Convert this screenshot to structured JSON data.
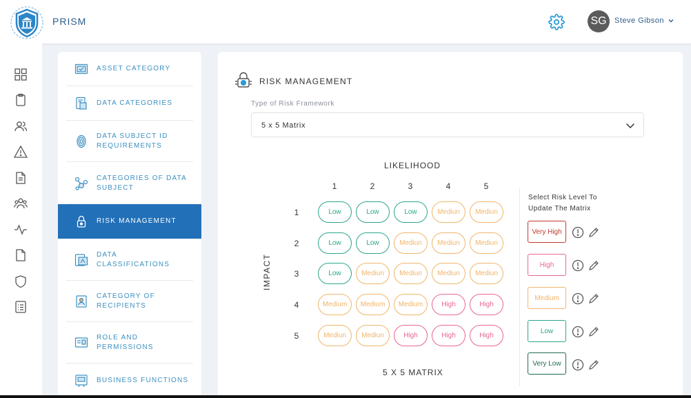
{
  "header": {
    "brand": "PRISM",
    "user": {
      "initials": "SG",
      "name": "Steve Gibson"
    }
  },
  "rail": [
    "dashboard-icon",
    "clipboard-icon",
    "users-icon",
    "alert-icon",
    "document-icon",
    "group-icon",
    "activity-icon",
    "file-icon",
    "shield-icon",
    "checklist-icon"
  ],
  "menu": {
    "items": [
      {
        "label": "ASSET CATEGORY"
      },
      {
        "label": "DATA CATEGORIES"
      },
      {
        "label": "DATA SUBJECT ID REQUIREMENTS"
      },
      {
        "label": "CATEGORIES OF DATA SUBJECT"
      },
      {
        "label": "RISK MANAGEMENT",
        "active": true
      },
      {
        "label": "DATA CLASSIFICATIONS"
      },
      {
        "label": "CATEGORY OF RECIPIENTS"
      },
      {
        "label": "ROLE AND PERMISSIONS"
      },
      {
        "label": "BUSINESS FUNCTIONS"
      }
    ]
  },
  "main": {
    "title": "RISK MANAGEMENT",
    "framework": {
      "label": "Type of Risk Framework",
      "value": "5 x 5 Matrix"
    },
    "matrix": {
      "likelihood_label": "LIKELIHOOD",
      "impact_label": "IMPACT",
      "footer": "5 X 5 MATRIX",
      "columns": [
        "1",
        "2",
        "3",
        "4",
        "5"
      ],
      "rows": [
        "1",
        "2",
        "3",
        "4",
        "5"
      ],
      "cells": [
        [
          "Low",
          "Low",
          "Low",
          "Mediun",
          "Mediun"
        ],
        [
          "Low",
          "Low",
          "Mediun",
          "Mediun",
          "Mediun"
        ],
        [
          "Low",
          "Mediun",
          "Mediun",
          "Mediun",
          "Mediun"
        ],
        [
          "Medium",
          "Medium",
          "Medium",
          "High",
          "High"
        ],
        [
          "Mediun",
          "Mediun",
          "High",
          "High",
          "High"
        ]
      ],
      "cell_levels": [
        [
          "low",
          "low",
          "low",
          "medium",
          "medium"
        ],
        [
          "low",
          "low",
          "medium",
          "medium",
          "medium"
        ],
        [
          "low",
          "medium",
          "medium",
          "medium",
          "medium"
        ],
        [
          "medium",
          "medium",
          "medium",
          "high",
          "high"
        ],
        [
          "medium",
          "medium",
          "high",
          "high",
          "high"
        ]
      ]
    },
    "risk_levels": {
      "title": "Select Risk Level To Update The Matrix",
      "levels": [
        {
          "key": "very_high",
          "label": "Very High"
        },
        {
          "key": "high",
          "label": "High"
        },
        {
          "key": "medium",
          "label": "Medium"
        },
        {
          "key": "low",
          "label": "Low"
        },
        {
          "key": "very_low",
          "label": "Very Low"
        }
      ]
    }
  },
  "colors": {
    "accent": "#2270b8",
    "low": "#2aa68a",
    "medium": "#f0b56a",
    "high": "#e8668c",
    "very_high": "#c0392b",
    "very_low": "#1f6b4f"
  }
}
